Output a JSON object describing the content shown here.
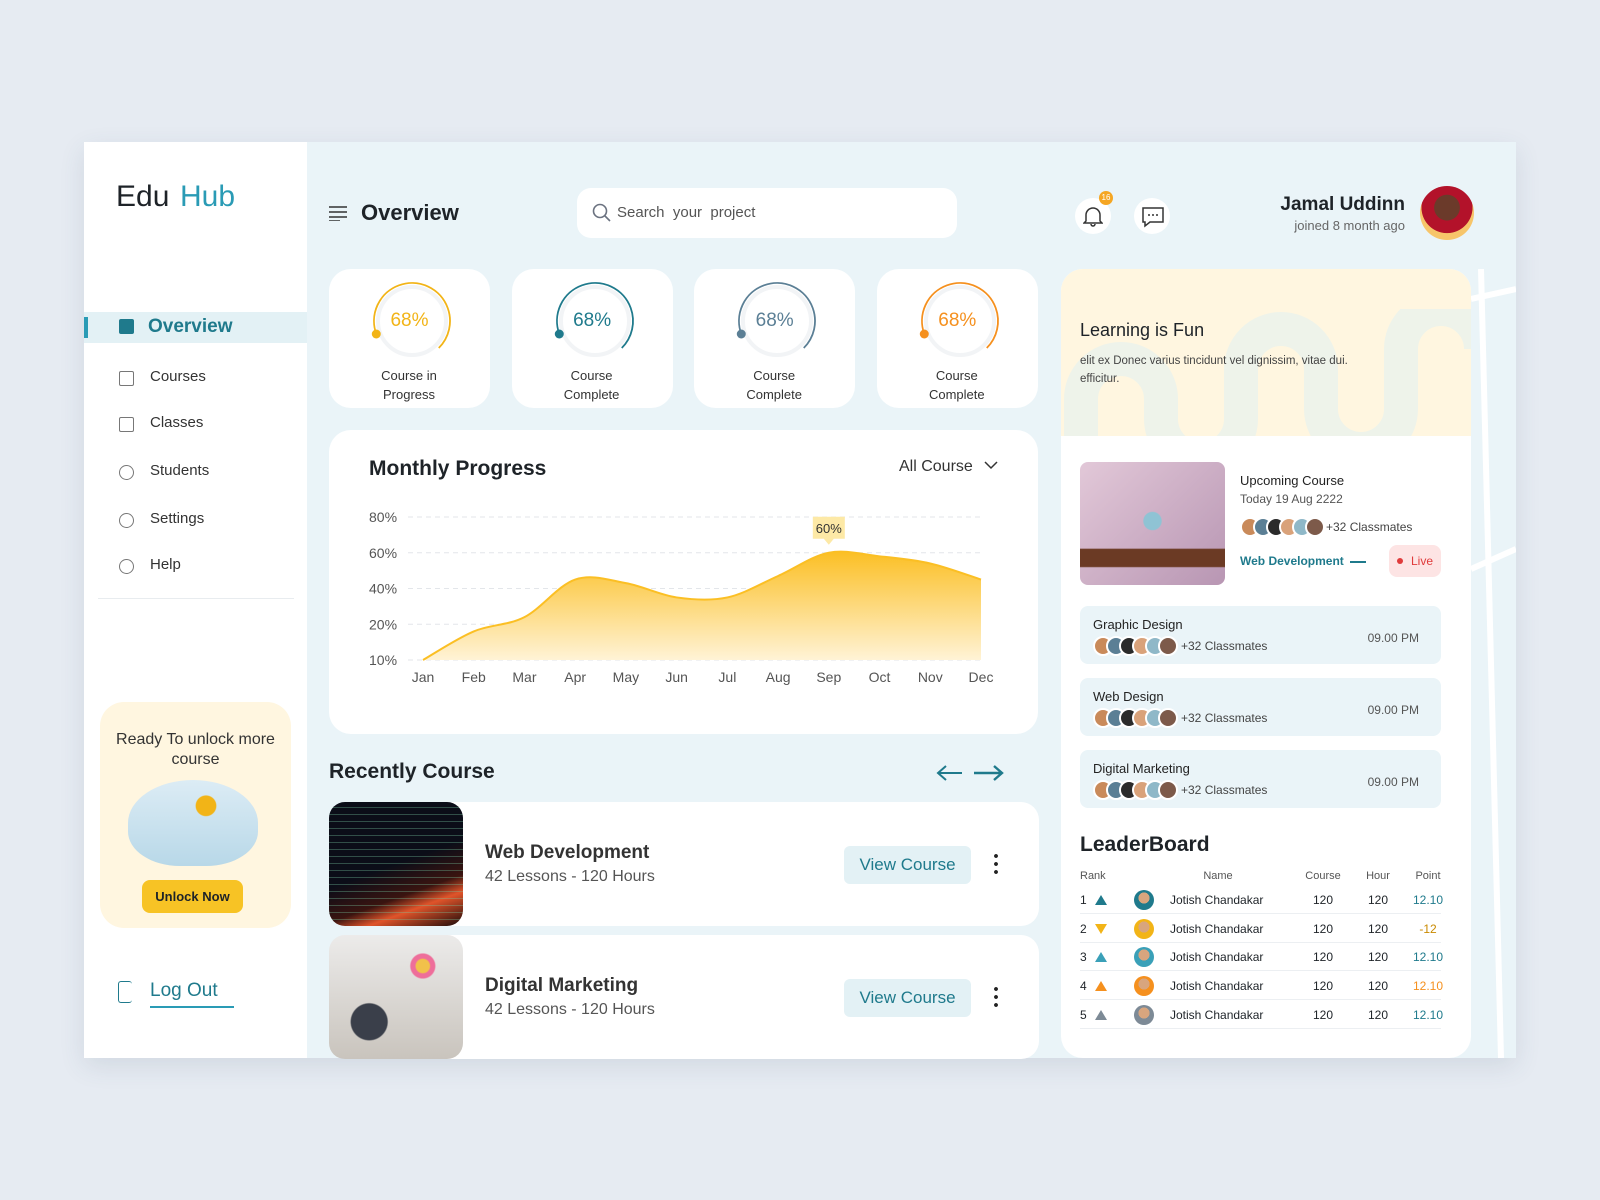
{
  "sidebar": {
    "logo": {
      "first": "Edu",
      "second": "Hub"
    },
    "nav": [
      "Overview",
      "Courses",
      "Classes",
      "Students",
      "Settings",
      "Help"
    ],
    "promo": {
      "text": "Ready To unlock more course",
      "button": "Unlock Now"
    },
    "logout": "Log Out"
  },
  "header": {
    "title": "Overview",
    "search_placeholder": "Search  your  project",
    "notifications": 16,
    "user": {
      "name": "Jamal Uddinn",
      "subtitle": "joined 8 month ago"
    }
  },
  "stats": [
    {
      "value": 68,
      "label": "68%",
      "caption": "Course in Progress",
      "color": "#f2b417"
    },
    {
      "value": 68,
      "label": "68%",
      "caption": "Course Complete",
      "color": "#1f7a8c"
    },
    {
      "value": 68,
      "label": "68%",
      "caption": "Course Complete",
      "color": "#5b7f95"
    },
    {
      "value": 68,
      "label": "68%",
      "caption": "Course Complete",
      "color": "#f5901e"
    }
  ],
  "chart_data": {
    "type": "area",
    "title": "Monthly Progress",
    "filter": "All Course",
    "categories": [
      "Jan",
      "Feb",
      "Mar",
      "Apr",
      "May",
      "Jun",
      "Jul",
      "Aug",
      "Sep",
      "Oct",
      "Nov",
      "Dec"
    ],
    "series": [
      {
        "values": [
          10,
          18,
          24,
          45,
          43,
          35,
          35,
          47,
          60,
          58,
          54,
          45
        ],
        "value_labels": [
          null,
          null,
          null,
          null,
          null,
          null,
          null,
          null,
          "60%",
          null,
          null,
          null
        ],
        "color": "#fbbf24"
      }
    ],
    "ylim": [
      10,
      80
    ],
    "yticks": [
      {
        "value": 10,
        "label": "10%"
      },
      {
        "value": 20,
        "label": "20%"
      },
      {
        "value": 40,
        "label": "40%"
      },
      {
        "value": 60,
        "label": "60%"
      },
      {
        "value": 80,
        "label": "80%"
      }
    ],
    "grid": true
  },
  "recent_courses": {
    "title": "Recently Course",
    "items": [
      {
        "title": "Web Development",
        "subtitle": "42 Lessons - 120 Hours",
        "button": "View Course"
      },
      {
        "title": "Digital Marketing",
        "subtitle": "42 Lessons - 120 Hours",
        "button": "View Course"
      }
    ]
  },
  "learning": {
    "title": "Learning is Fun",
    "text": "elit ex Donec varius tincidunt vel dignissim, vitae dui. efficitur."
  },
  "upcoming": {
    "label": "Upcoming Course",
    "date": "Today 19 Aug 2222",
    "classmates": "+32 Classmates",
    "course": "Web Development",
    "status": "Live"
  },
  "classes": [
    {
      "name": "Graphic Design",
      "classmates": "+32 Classmates",
      "time": "09.00 PM"
    },
    {
      "name": "Web Design",
      "classmates": "+32 Classmates",
      "time": "09.00 PM"
    },
    {
      "name": "Digital Marketing",
      "classmates": "+32 Classmates",
      "time": "09.00 PM"
    }
  ],
  "leaderboard": {
    "title": "LeaderBoard",
    "columns": [
      "Rank",
      "Name",
      "Course",
      "Hour",
      "Point"
    ],
    "rows": [
      {
        "rank": 1,
        "trend": "up",
        "trend_color": "#1f7a8c",
        "name": "Jotish Chandakar",
        "course": 120,
        "hour": 120,
        "point": "12.10",
        "point_color": "#1f7a8c"
      },
      {
        "rank": 2,
        "trend": "down",
        "trend_color": "#f2b417",
        "name": "Jotish Chandakar",
        "course": 120,
        "hour": 120,
        "point": "-12",
        "point_color": "#c98a00"
      },
      {
        "rank": 3,
        "trend": "up",
        "trend_color": "#3aa0b8",
        "name": "Jotish Chandakar",
        "course": 120,
        "hour": 120,
        "point": "12.10",
        "point_color": "#1f7a8c"
      },
      {
        "rank": 4,
        "trend": "up",
        "trend_color": "#f5901e",
        "name": "Jotish Chandakar",
        "course": 120,
        "hour": 120,
        "point": "12.10",
        "point_color": "#f5901e"
      },
      {
        "rank": 5,
        "trend": "up",
        "trend_color": "#7d8a96",
        "name": "Jotish Chandakar",
        "course": 120,
        "hour": 120,
        "point": "12.10",
        "point_color": "#1f7a8c"
      }
    ]
  }
}
